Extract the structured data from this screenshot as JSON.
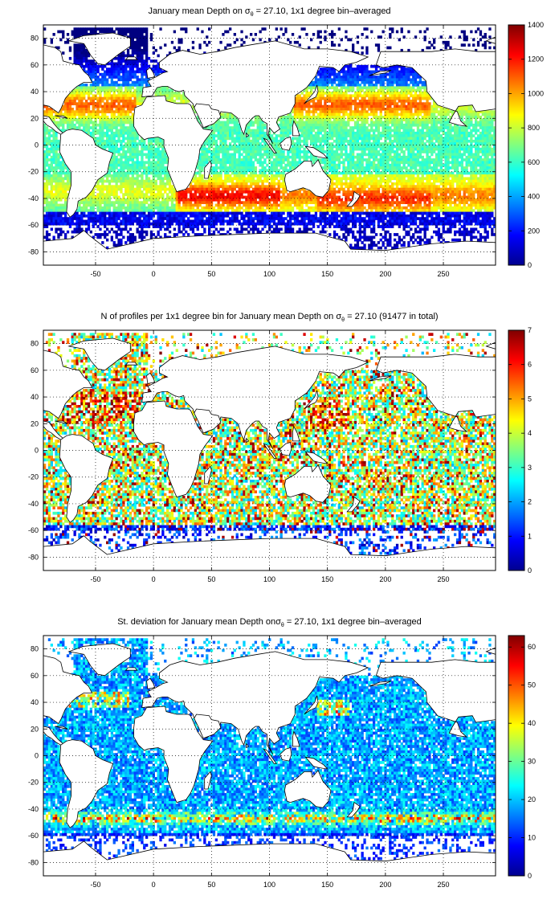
{
  "figure": {
    "colormap": "jet",
    "axes": {
      "x_ticks": [
        -50,
        0,
        50,
        100,
        150,
        200,
        250
      ],
      "y_ticks": [
        80,
        60,
        40,
        20,
        0,
        -20,
        -40,
        -60,
        -80
      ],
      "x_range": [
        -95,
        295
      ],
      "y_range": [
        -90,
        90
      ]
    },
    "panels": [
      {
        "id": "mean-depth",
        "title_main": "January mean Depth on σ",
        "title_sub": "θ",
        "title_rest": " = 27.10, 1x1 degree bin–averaged",
        "colorbar": {
          "ticks": [
            0,
            200,
            400,
            600,
            800,
            1000,
            1200,
            1400
          ],
          "range": [
            0,
            1400
          ]
        }
      },
      {
        "id": "profile-count",
        "title_main": "N of profiles per 1x1 degree bin for January mean Depth on σ",
        "title_sub": "θ",
        "title_rest": " = 27.10 (91477 in total)",
        "colorbar": {
          "ticks": [
            0,
            1,
            2,
            3,
            4,
            5,
            6,
            7
          ],
          "range": [
            0,
            7
          ]
        }
      },
      {
        "id": "std-deviation",
        "title_main": "St. deviation for January mean Depth onσ",
        "title_sub": "θ",
        "title_rest": " = 27.10, 1x1 degree bin–averaged",
        "colorbar": {
          "ticks": [
            0,
            10,
            20,
            30,
            40,
            50,
            60
          ],
          "range": [
            0,
            63
          ]
        }
      }
    ]
  }
}
